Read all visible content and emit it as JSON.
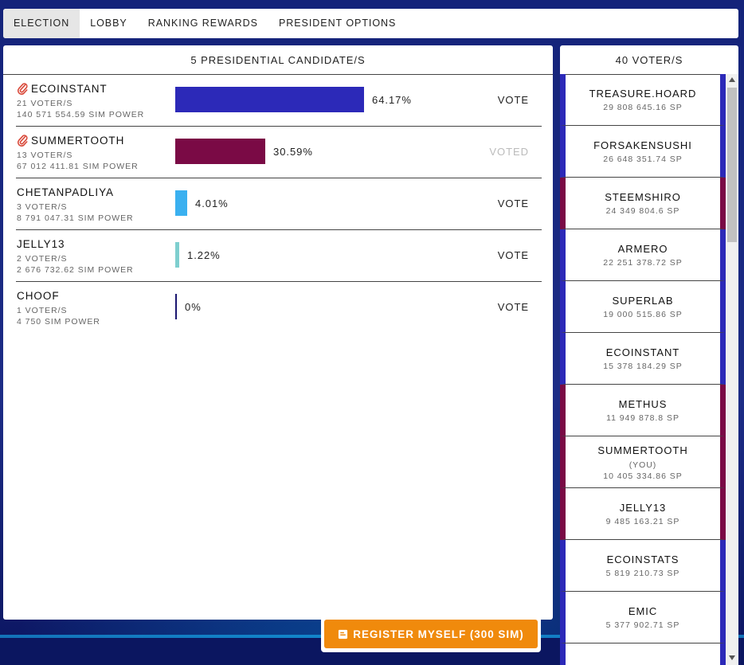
{
  "tabs": [
    {
      "label": "ELECTION",
      "active": true
    },
    {
      "label": "LOBBY"
    },
    {
      "label": "RANKING REWARDS"
    },
    {
      "label": "PRESIDENT OPTIONS"
    }
  ],
  "candidates": {
    "header": "5 PRESIDENTIAL CANDIDATE/S",
    "rows": [
      {
        "name": "ECOINSTANT",
        "voters": "21 VOTER/S",
        "power": "140 571 554.59 SIM POWER",
        "percent": "64.17%",
        "share": 64.17,
        "color": "#2c29b8",
        "action": "VOTE",
        "clip": true
      },
      {
        "name": "SUMMERTOOTH",
        "voters": "13 VOTER/S",
        "power": "67 012 411.81 SIM POWER",
        "percent": "30.59%",
        "share": 30.59,
        "color": "#7a0a45",
        "action": "VOTED",
        "clip": true
      },
      {
        "name": "CHETANPADLIYA",
        "voters": "3 VOTER/S",
        "power": "8 791 047.31 SIM POWER",
        "percent": "4.01%",
        "share": 4.01,
        "color": "#3ab0f0",
        "action": "VOTE",
        "clip": false
      },
      {
        "name": "JELLY13",
        "voters": "2 VOTER/S",
        "power": "2 676 732.62 SIM POWER",
        "percent": "1.22%",
        "share": 1.22,
        "color": "#7ecfcf",
        "action": "VOTE",
        "clip": false
      },
      {
        "name": "CHOOF",
        "voters": "1 VOTER/S",
        "power": "4 750 SIM POWER",
        "percent": "0%",
        "share": 0,
        "color": "#1a1670",
        "action": "VOTE",
        "clip": false
      }
    ]
  },
  "register": {
    "label": "REGISTER MYSELF (300 SIM)",
    "icon": "register-icon"
  },
  "voters": {
    "header": "40 VOTER/S",
    "items": [
      {
        "name": "TREASURE.HOARD",
        "sp": "29 808 645.16 SP",
        "color": "blue"
      },
      {
        "name": "FORSAKENSUSHI",
        "sp": "26 648 351.74 SP",
        "color": "blue"
      },
      {
        "name": "STEEMSHIRO",
        "sp": "24 349 804.6 SP",
        "color": "red"
      },
      {
        "name": "ARMERO",
        "sp": "22 251 378.72 SP",
        "color": "blue"
      },
      {
        "name": "SUPERLAB",
        "sp": "19 000 515.86 SP",
        "color": "blue"
      },
      {
        "name": "ECOINSTANT",
        "sp": "15 378 184.29 SP",
        "color": "blue"
      },
      {
        "name": "METHUS",
        "sp": "11 949 878.8 SP",
        "color": "red"
      },
      {
        "name": "SUMMERTOOTH",
        "you": "(YOU)",
        "sp": "10 405 334.86 SP",
        "color": "red"
      },
      {
        "name": "JELLY13",
        "sp": "9 485 163.21 SP",
        "color": "red"
      },
      {
        "name": "ECOINSTATS",
        "sp": "5 819 210.73 SP",
        "color": "blue"
      },
      {
        "name": "EMIC",
        "sp": "5 377 902.71 SP",
        "color": "blue"
      },
      {
        "name": "",
        "sp": "",
        "color": "blue"
      }
    ]
  }
}
